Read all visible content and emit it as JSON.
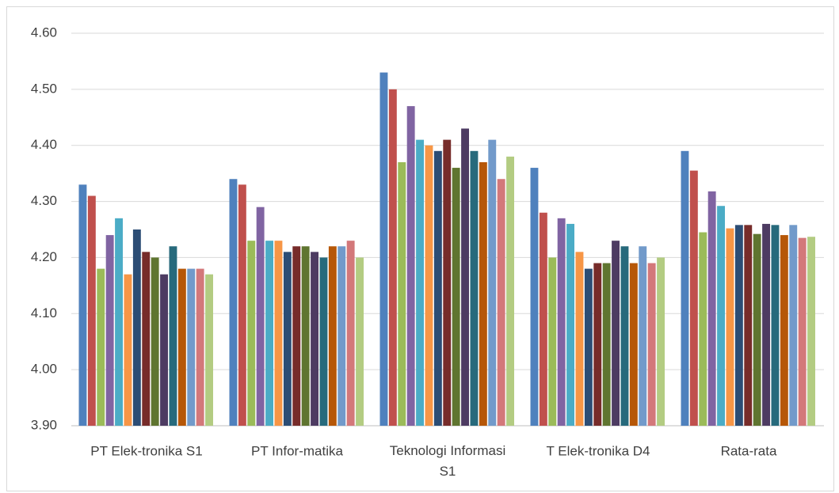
{
  "chart_data": {
    "type": "bar",
    "categories": [
      "PT Elek-tronika S1",
      "PT Infor-matika",
      "Teknologi Informasi S1",
      "T Elek-tronika D4",
      "Rata-rata"
    ],
    "series": [
      {
        "color": "#4f81bd",
        "values": [
          4.33,
          4.34,
          4.53,
          4.36,
          4.39
        ]
      },
      {
        "color": "#c0504d",
        "values": [
          4.31,
          4.33,
          4.5,
          4.28,
          4.355
        ]
      },
      {
        "color": "#9bbb59",
        "values": [
          4.18,
          4.23,
          4.37,
          4.2,
          4.245
        ]
      },
      {
        "color": "#8064a2",
        "values": [
          4.24,
          4.29,
          4.47,
          4.27,
          4.318
        ]
      },
      {
        "color": "#4bacc6",
        "values": [
          4.27,
          4.23,
          4.41,
          4.26,
          4.292
        ]
      },
      {
        "color": "#f79646",
        "values": [
          4.17,
          4.23,
          4.4,
          4.21,
          4.252
        ]
      },
      {
        "color": "#2c4d75",
        "values": [
          4.25,
          4.21,
          4.39,
          4.18,
          4.258
        ]
      },
      {
        "color": "#772c2a",
        "values": [
          4.21,
          4.22,
          4.41,
          4.19,
          4.258
        ]
      },
      {
        "color": "#5f7530",
        "values": [
          4.2,
          4.22,
          4.36,
          4.19,
          4.242
        ]
      },
      {
        "color": "#4d3b62",
        "values": [
          4.17,
          4.21,
          4.43,
          4.23,
          4.26
        ]
      },
      {
        "color": "#276a7c",
        "values": [
          4.22,
          4.2,
          4.39,
          4.22,
          4.258
        ]
      },
      {
        "color": "#b65708",
        "values": [
          4.18,
          4.22,
          4.37,
          4.19,
          4.24
        ]
      },
      {
        "color": "#729aca",
        "values": [
          4.18,
          4.22,
          4.41,
          4.22,
          4.258
        ]
      },
      {
        "color": "#d3787a",
        "values": [
          4.18,
          4.23,
          4.34,
          4.19,
          4.235
        ]
      },
      {
        "color": "#b3cc82",
        "values": [
          4.17,
          4.2,
          4.38,
          4.2,
          4.237
        ]
      }
    ],
    "ylim": [
      3.9,
      4.6
    ],
    "yticks": [
      {
        "value": 3.9,
        "label": "3.90"
      },
      {
        "value": 4.0,
        "label": "4.00"
      },
      {
        "value": 4.1,
        "label": "4.10"
      },
      {
        "value": 4.2,
        "label": "4.20"
      },
      {
        "value": 4.3,
        "label": "4.30"
      },
      {
        "value": 4.4,
        "label": "4.40"
      },
      {
        "value": 4.5,
        "label": "4.50"
      },
      {
        "value": 4.6,
        "label": "4.60"
      }
    ],
    "grid": true
  }
}
